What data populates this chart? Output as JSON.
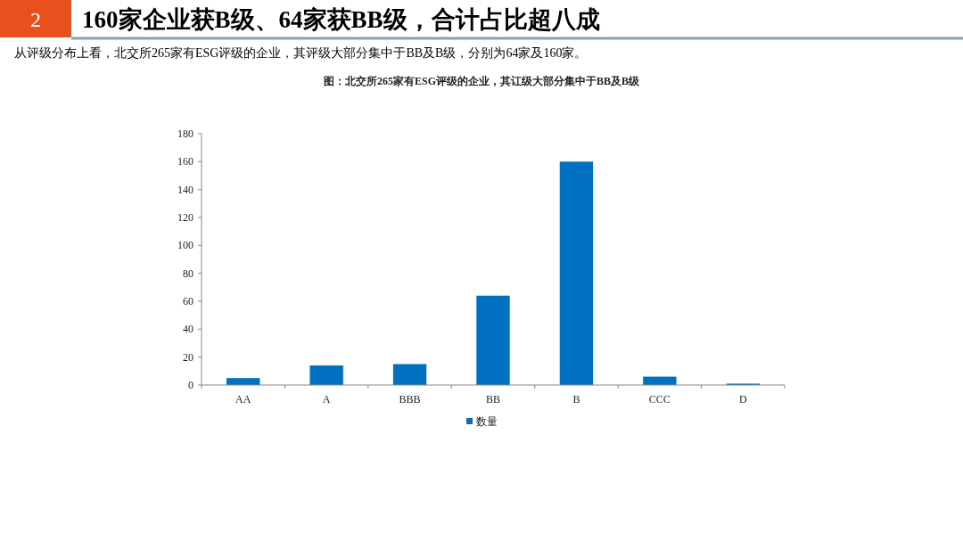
{
  "chart_data": {
    "type": "bar",
    "title": "160家企业获B级、64家获BB级，合计占比超八成",
    "subtitle": "图：北交所265家有ESG评级的企业，其讧级大部分集中于BB及B级",
    "annotations": [
      "2",
      "从评级分布上看，北交所265家有ESG评级的企业，其评级大部分集中于BB及B级，分别为64家及160家。"
    ],
    "categories": [
      "AA",
      "A",
      "BBB",
      "BB",
      "B",
      "CCC",
      "D"
    ],
    "series": [
      {
        "name": "数量",
        "color": "#0070c0",
        "values": [
          5,
          14,
          15,
          64,
          160,
          6,
          1
        ]
      }
    ],
    "ylim": [
      0,
      180
    ],
    "yticks": [
      0,
      20,
      40,
      60,
      80,
      100,
      120,
      140,
      160,
      180
    ],
    "grid": false,
    "legend": "bottom"
  }
}
